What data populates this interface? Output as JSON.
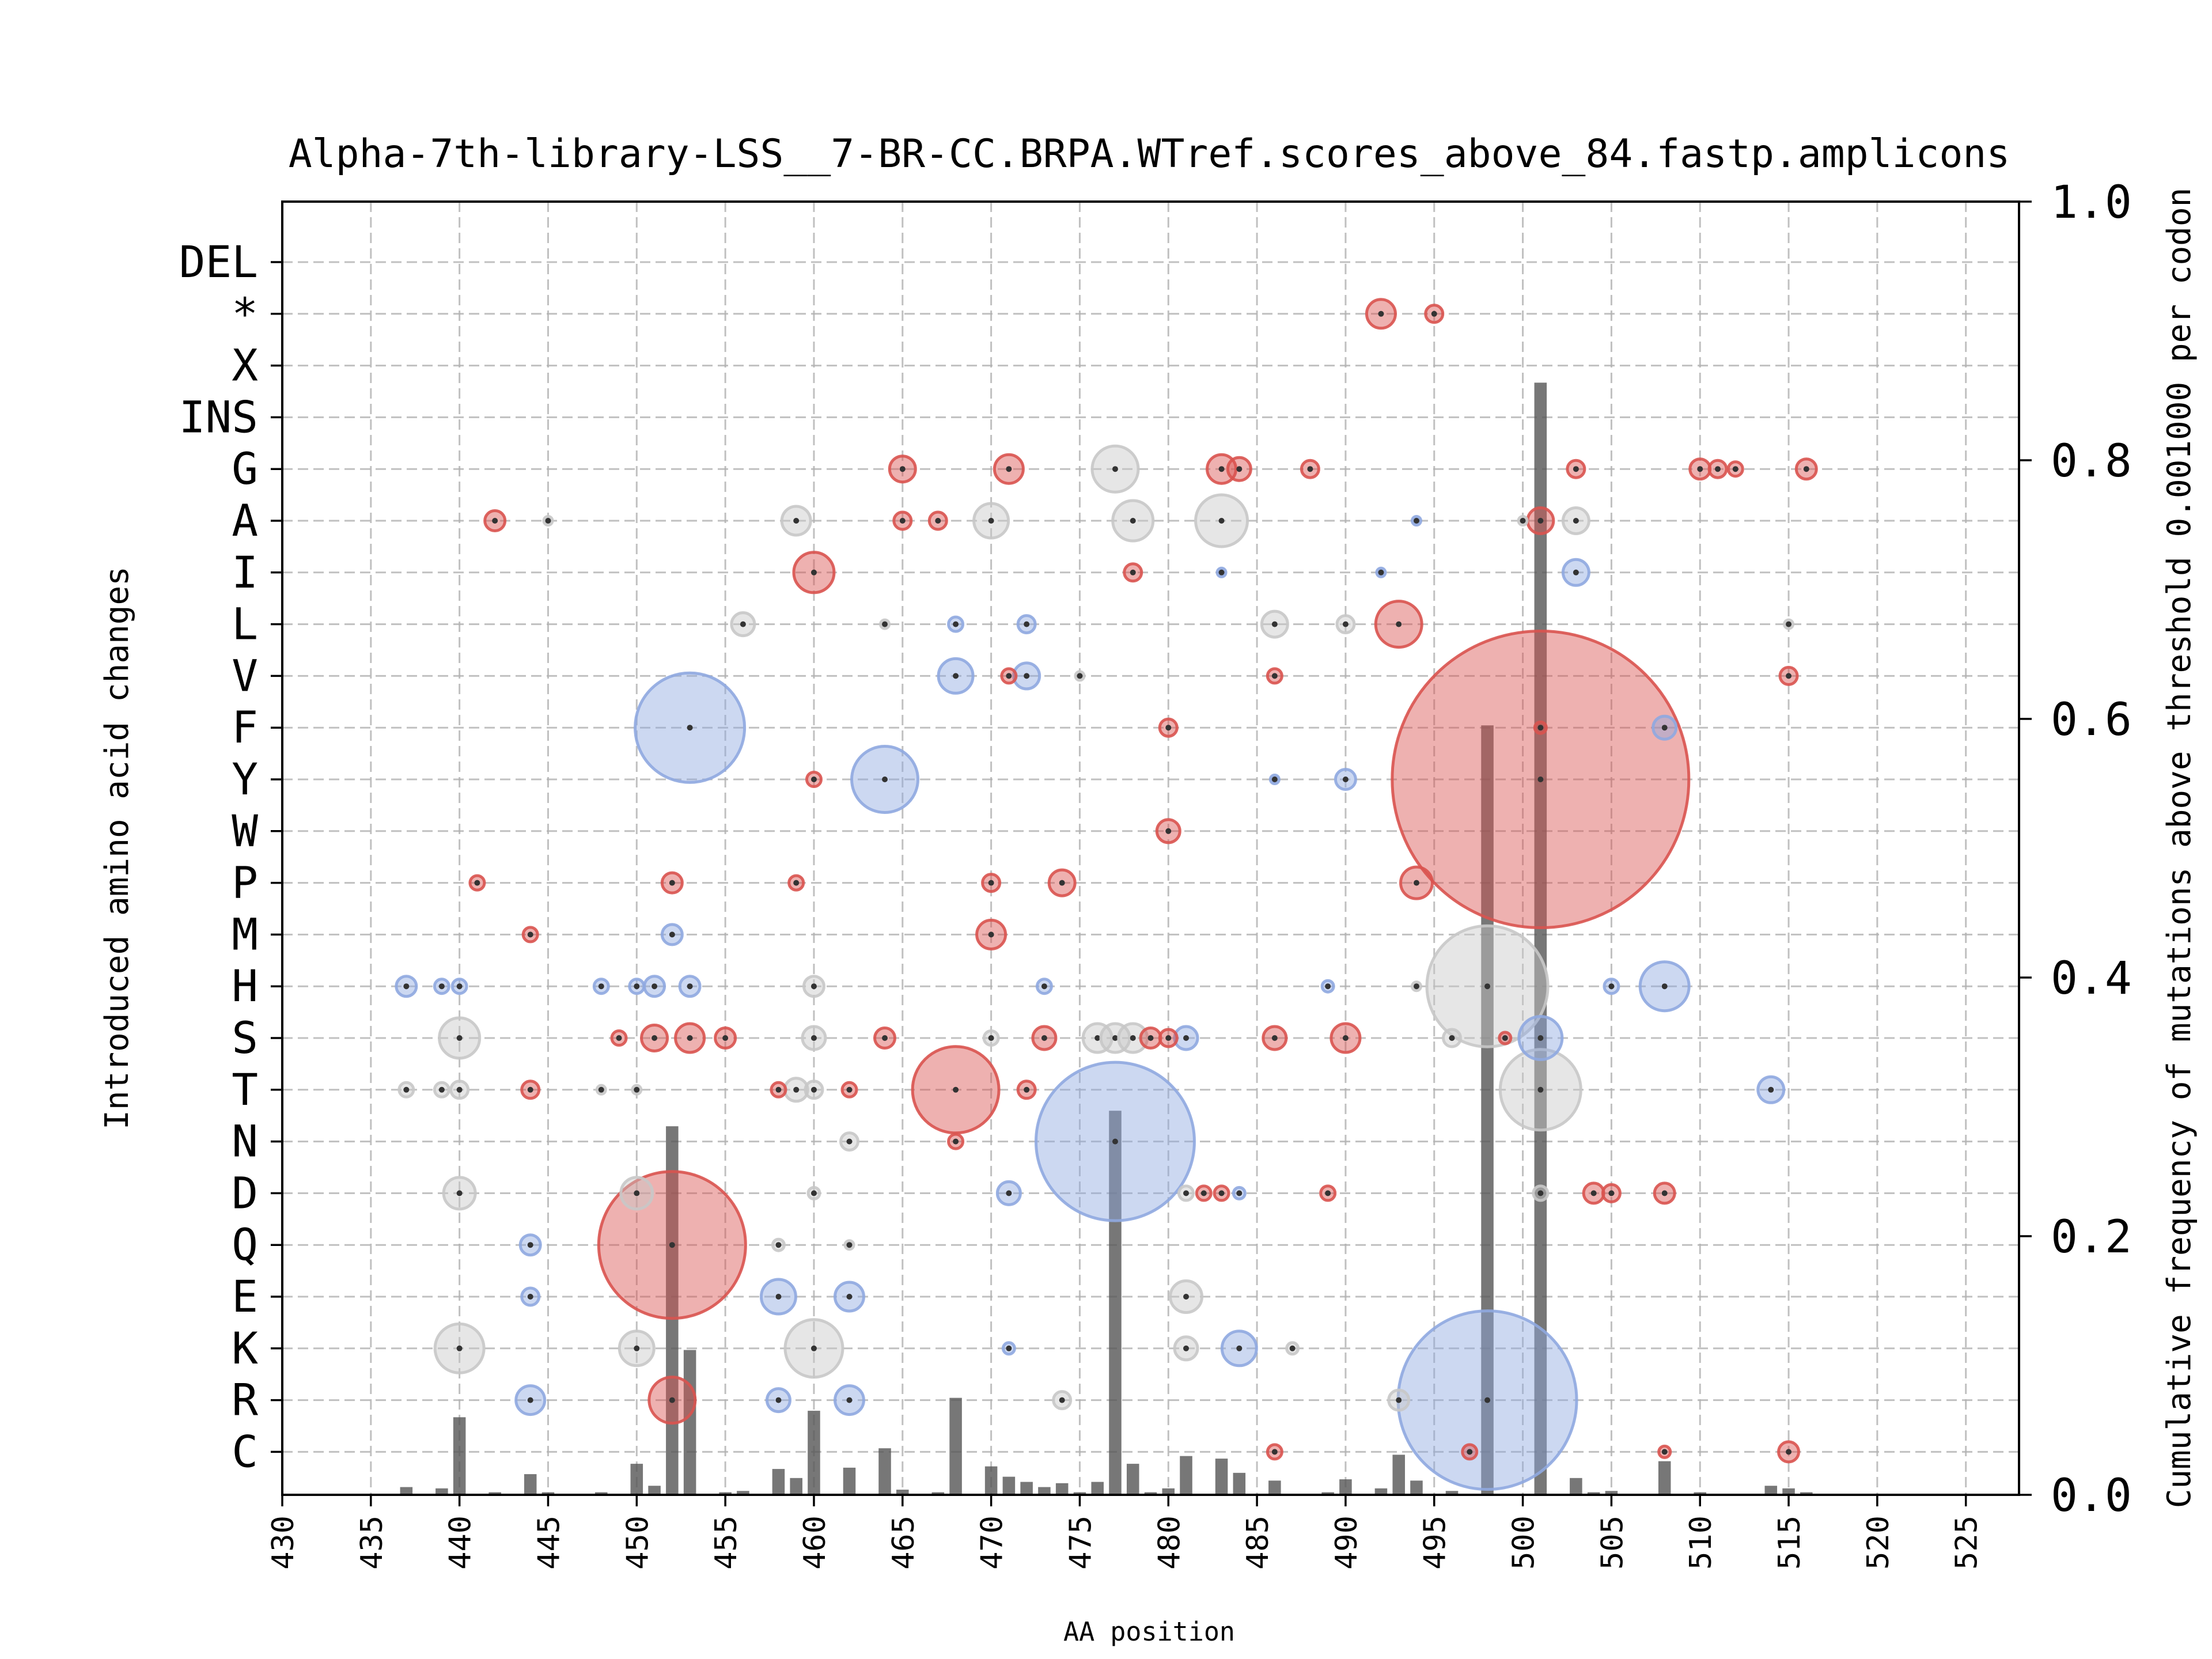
{
  "colors": {
    "increase": "#d9534f",
    "decrease": "#8fa8e0",
    "neutral": "#c8c8c8",
    "bar": "#555555",
    "center_dot": "#333333"
  },
  "chart_data": {
    "type": "bubble-scatter+bar",
    "title": "Alpha-7th-library-LSS__7-BR-CC.BRPA.WTref.scores_above_84.fastp.amplicons",
    "xlabel": "AA position",
    "ylabel_left": "Introduced amino acid changes",
    "ylabel_right": "Cumulative frequency of mutations above threshold 0.001000 per codon",
    "xlim": [
      430,
      528
    ],
    "x_ticks": [
      "430",
      "435",
      "440",
      "445",
      "450",
      "455",
      "460",
      "465",
      "470",
      "475",
      "480",
      "485",
      "490",
      "495",
      "500",
      "505",
      "510",
      "515",
      "520",
      "525"
    ],
    "y2lim": [
      0,
      1.0
    ],
    "y2_ticks": [
      "0.0",
      "0.2",
      "0.4",
      "0.6",
      "0.8",
      "1.0"
    ],
    "amino_acids": [
      "DEL",
      "*",
      "X",
      "INS",
      "G",
      "A",
      "I",
      "L",
      "V",
      "F",
      "Y",
      "W",
      "P",
      "M",
      "H",
      "S",
      "T",
      "N",
      "D",
      "Q",
      "E",
      "K",
      "R",
      "C"
    ],
    "bubble_legend": {
      "r": "increase",
      "b": "decrease",
      "g": "neutral"
    },
    "bubbles": [
      [
        492,
        "*",
        10,
        "r"
      ],
      [
        495,
        "*",
        6,
        "r"
      ],
      [
        465,
        "G",
        9,
        "r"
      ],
      [
        471,
        "G",
        10,
        "r"
      ],
      [
        477,
        "G",
        16,
        "g"
      ],
      [
        483,
        "G",
        10,
        "r"
      ],
      [
        484,
        "G",
        8,
        "r"
      ],
      [
        488,
        "G",
        6,
        "r"
      ],
      [
        503,
        "G",
        6,
        "r"
      ],
      [
        510,
        "G",
        7,
        "r"
      ],
      [
        511,
        "G",
        6,
        "r"
      ],
      [
        512,
        "G",
        5,
        "r"
      ],
      [
        516,
        "G",
        7,
        "r"
      ],
      [
        442,
        "A",
        7,
        "r"
      ],
      [
        445,
        "A",
        3,
        "g"
      ],
      [
        459,
        "A",
        10,
        "g"
      ],
      [
        465,
        "A",
        6,
        "r"
      ],
      [
        467,
        "A",
        6,
        "r"
      ],
      [
        470,
        "A",
        12,
        "g"
      ],
      [
        478,
        "A",
        14,
        "g"
      ],
      [
        483,
        "A",
        18,
        "g"
      ],
      [
        494,
        "A",
        3,
        "b"
      ],
      [
        500,
        "A",
        3,
        "g"
      ],
      [
        501,
        "A",
        9,
        "r"
      ],
      [
        503,
        "A",
        9,
        "g"
      ],
      [
        460,
        "I",
        14,
        "r"
      ],
      [
        478,
        "I",
        6,
        "r"
      ],
      [
        483,
        "I",
        3,
        "b"
      ],
      [
        492,
        "I",
        3,
        "b"
      ],
      [
        503,
        "I",
        9,
        "b"
      ],
      [
        456,
        "L",
        8,
        "g"
      ],
      [
        464,
        "L",
        3,
        "g"
      ],
      [
        468,
        "L",
        5,
        "b"
      ],
      [
        472,
        "L",
        6,
        "b"
      ],
      [
        486,
        "L",
        9,
        "g"
      ],
      [
        490,
        "L",
        6,
        "g"
      ],
      [
        493,
        "L",
        16,
        "r"
      ],
      [
        515,
        "L",
        3,
        "g"
      ],
      [
        468,
        "V",
        12,
        "b"
      ],
      [
        471,
        "V",
        5,
        "r"
      ],
      [
        472,
        "V",
        9,
        "b"
      ],
      [
        475,
        "V",
        3,
        "g"
      ],
      [
        486,
        "V",
        5,
        "r"
      ],
      [
        515,
        "V",
        6,
        "r"
      ],
      [
        453,
        "F",
        38,
        "b"
      ],
      [
        480,
        "F",
        6,
        "r"
      ],
      [
        501,
        "F",
        4,
        "r"
      ],
      [
        508,
        "F",
        8,
        "b"
      ],
      [
        460,
        "Y",
        5,
        "r"
      ],
      [
        464,
        "Y",
        23,
        "b"
      ],
      [
        486,
        "Y",
        3,
        "b"
      ],
      [
        490,
        "Y",
        7,
        "b"
      ],
      [
        501,
        "Y",
        103,
        "r"
      ],
      [
        480,
        "W",
        8,
        "r"
      ],
      [
        441,
        "P",
        5,
        "r"
      ],
      [
        452,
        "P",
        7,
        "r"
      ],
      [
        459,
        "P",
        5,
        "r"
      ],
      [
        470,
        "P",
        6,
        "r"
      ],
      [
        474,
        "P",
        9,
        "r"
      ],
      [
        494,
        "P",
        11,
        "r"
      ],
      [
        444,
        "M",
        5,
        "r"
      ],
      [
        452,
        "M",
        7,
        "b"
      ],
      [
        470,
        "M",
        10,
        "r"
      ],
      [
        437,
        "H",
        7,
        "b"
      ],
      [
        439,
        "H",
        5,
        "b"
      ],
      [
        440,
        "H",
        5,
        "b"
      ],
      [
        448,
        "H",
        5,
        "b"
      ],
      [
        450,
        "H",
        5,
        "b"
      ],
      [
        451,
        "H",
        7,
        "b"
      ],
      [
        453,
        "H",
        7,
        "b"
      ],
      [
        460,
        "H",
        7,
        "g"
      ],
      [
        473,
        "H",
        5,
        "b"
      ],
      [
        489,
        "H",
        4,
        "b"
      ],
      [
        494,
        "H",
        3,
        "g"
      ],
      [
        498,
        "H",
        42,
        "g"
      ],
      [
        505,
        "H",
        5,
        "b"
      ],
      [
        508,
        "H",
        17,
        "b"
      ],
      [
        440,
        "S",
        14,
        "g"
      ],
      [
        449,
        "S",
        5,
        "r"
      ],
      [
        451,
        "S",
        9,
        "r"
      ],
      [
        453,
        "S",
        10,
        "r"
      ],
      [
        455,
        "S",
        7,
        "r"
      ],
      [
        460,
        "S",
        8,
        "g"
      ],
      [
        464,
        "S",
        7,
        "r"
      ],
      [
        470,
        "S",
        5,
        "g"
      ],
      [
        473,
        "S",
        8,
        "r"
      ],
      [
        476,
        "S",
        10,
        "g"
      ],
      [
        477,
        "S",
        10,
        "g"
      ],
      [
        478,
        "S",
        10,
        "g"
      ],
      [
        479,
        "S",
        7,
        "r"
      ],
      [
        480,
        "S",
        6,
        "r"
      ],
      [
        481,
        "S",
        8,
        "b"
      ],
      [
        486,
        "S",
        8,
        "r"
      ],
      [
        490,
        "S",
        10,
        "r"
      ],
      [
        496,
        "S",
        6,
        "g"
      ],
      [
        499,
        "S",
        4,
        "r"
      ],
      [
        501,
        "S",
        15,
        "b"
      ],
      [
        437,
        "T",
        5,
        "g"
      ],
      [
        439,
        "T",
        5,
        "g"
      ],
      [
        440,
        "T",
        6,
        "g"
      ],
      [
        444,
        "T",
        6,
        "r"
      ],
      [
        448,
        "T",
        3,
        "g"
      ],
      [
        450,
        "T",
        3,
        "g"
      ],
      [
        458,
        "T",
        5,
        "r"
      ],
      [
        459,
        "T",
        8,
        "g"
      ],
      [
        460,
        "T",
        6,
        "g"
      ],
      [
        462,
        "T",
        5,
        "r"
      ],
      [
        468,
        "T",
        30,
        "r"
      ],
      [
        472,
        "T",
        6,
        "r"
      ],
      [
        501,
        "T",
        28,
        "g"
      ],
      [
        514,
        "T",
        9,
        "b"
      ],
      [
        462,
        "N",
        6,
        "g"
      ],
      [
        468,
        "N",
        5,
        "r"
      ],
      [
        477,
        "N",
        55,
        "b"
      ],
      [
        440,
        "D",
        11,
        "g"
      ],
      [
        450,
        "D",
        11,
        "g"
      ],
      [
        460,
        "D",
        4,
        "g"
      ],
      [
        471,
        "D",
        8,
        "b"
      ],
      [
        481,
        "D",
        5,
        "g"
      ],
      [
        482,
        "D",
        5,
        "r"
      ],
      [
        483,
        "D",
        5,
        "r"
      ],
      [
        484,
        "D",
        4,
        "b"
      ],
      [
        489,
        "D",
        5,
        "r"
      ],
      [
        501,
        "D",
        5,
        "g"
      ],
      [
        504,
        "D",
        7,
        "r"
      ],
      [
        505,
        "D",
        6,
        "r"
      ],
      [
        508,
        "D",
        7,
        "r"
      ],
      [
        444,
        "Q",
        7,
        "b"
      ],
      [
        452,
        "Q",
        51,
        "r"
      ],
      [
        458,
        "Q",
        4,
        "g"
      ],
      [
        462,
        "Q",
        3,
        "g"
      ],
      [
        444,
        "E",
        6,
        "b"
      ],
      [
        458,
        "E",
        12,
        "b"
      ],
      [
        462,
        "E",
        10,
        "b"
      ],
      [
        481,
        "E",
        11,
        "g"
      ],
      [
        440,
        "K",
        17,
        "g"
      ],
      [
        450,
        "K",
        12,
        "g"
      ],
      [
        460,
        "K",
        20,
        "g"
      ],
      [
        471,
        "K",
        4,
        "b"
      ],
      [
        481,
        "K",
        8,
        "g"
      ],
      [
        484,
        "K",
        12,
        "b"
      ],
      [
        487,
        "K",
        4,
        "g"
      ],
      [
        444,
        "R",
        10,
        "b"
      ],
      [
        452,
        "R",
        16,
        "r"
      ],
      [
        458,
        "R",
        8,
        "b"
      ],
      [
        462,
        "R",
        10,
        "b"
      ],
      [
        474,
        "R",
        6,
        "g"
      ],
      [
        493,
        "R",
        7,
        "g"
      ],
      [
        498,
        "R",
        62,
        "b"
      ],
      [
        486,
        "C",
        5,
        "r"
      ],
      [
        497,
        "C",
        5,
        "r"
      ],
      [
        508,
        "C",
        4,
        "r"
      ],
      [
        515,
        "C",
        7,
        "r"
      ]
    ],
    "bars": [
      [
        437,
        0.006
      ],
      [
        439,
        0.005
      ],
      [
        440,
        0.06
      ],
      [
        442,
        0.002
      ],
      [
        444,
        0.016
      ],
      [
        445,
        0.002
      ],
      [
        448,
        0.002
      ],
      [
        450,
        0.024
      ],
      [
        451,
        0.007
      ],
      [
        452,
        0.285
      ],
      [
        453,
        0.112
      ],
      [
        455,
        0.002
      ],
      [
        456,
        0.003
      ],
      [
        458,
        0.02
      ],
      [
        459,
        0.013
      ],
      [
        460,
        0.065
      ],
      [
        462,
        0.021
      ],
      [
        464,
        0.036
      ],
      [
        465,
        0.004
      ],
      [
        467,
        0.002
      ],
      [
        468,
        0.075
      ],
      [
        470,
        0.022
      ],
      [
        471,
        0.014
      ],
      [
        472,
        0.01
      ],
      [
        473,
        0.006
      ],
      [
        474,
        0.009
      ],
      [
        475,
        0.002
      ],
      [
        476,
        0.01
      ],
      [
        477,
        0.297
      ],
      [
        478,
        0.024
      ],
      [
        479,
        0.002
      ],
      [
        480,
        0.005
      ],
      [
        481,
        0.03
      ],
      [
        483,
        0.028
      ],
      [
        484,
        0.017
      ],
      [
        486,
        0.011
      ],
      [
        489,
        0.002
      ],
      [
        490,
        0.012
      ],
      [
        492,
        0.005
      ],
      [
        493,
        0.031
      ],
      [
        494,
        0.011
      ],
      [
        496,
        0.003
      ],
      [
        498,
        0.595
      ],
      [
        501,
        0.86
      ],
      [
        503,
        0.013
      ],
      [
        504,
        0.002
      ],
      [
        505,
        0.003
      ],
      [
        508,
        0.026
      ],
      [
        510,
        0.002
      ],
      [
        514,
        0.007
      ],
      [
        515,
        0.005
      ],
      [
        516,
        0.002
      ]
    ]
  }
}
